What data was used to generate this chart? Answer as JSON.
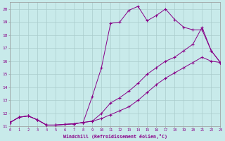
{
  "xlabel": "Windchill (Refroidissement éolien,°C)",
  "bg_color": "#c8eaea",
  "line_color": "#880088",
  "grid_color": "#aacccc",
  "xlim": [
    0,
    23
  ],
  "ylim": [
    11,
    20.5
  ],
  "xticks": [
    0,
    1,
    2,
    3,
    4,
    5,
    6,
    7,
    8,
    9,
    10,
    11,
    12,
    13,
    14,
    15,
    16,
    17,
    18,
    19,
    20,
    21,
    22,
    23
  ],
  "yticks": [
    11,
    12,
    13,
    14,
    15,
    16,
    17,
    18,
    19,
    20
  ],
  "curve_top_x": [
    0,
    1,
    2,
    3,
    4,
    5,
    6,
    7,
    8,
    9,
    10,
    11,
    12,
    13,
    14,
    15,
    16,
    17,
    18,
    19,
    20,
    21,
    22,
    23
  ],
  "curve_top_y": [
    11.3,
    11.7,
    11.8,
    11.5,
    11.1,
    11.1,
    11.15,
    11.2,
    11.3,
    13.3,
    15.5,
    18.9,
    19.0,
    19.9,
    20.2,
    19.1,
    19.5,
    20.0,
    19.2,
    18.6,
    18.4,
    18.4,
    16.8,
    15.9
  ],
  "curve_mid_x": [
    0,
    1,
    2,
    3,
    4,
    5,
    6,
    7,
    8,
    9,
    10,
    11,
    12,
    13,
    14,
    15,
    16,
    17,
    18,
    19,
    20,
    21,
    22,
    23
  ],
  "curve_mid_y": [
    11.3,
    11.7,
    11.8,
    11.5,
    11.1,
    11.1,
    11.15,
    11.2,
    11.3,
    11.4,
    12.0,
    12.8,
    13.2,
    13.7,
    14.3,
    15.0,
    15.5,
    16.0,
    16.3,
    16.8,
    17.3,
    18.6,
    16.8,
    15.9
  ],
  "curve_bot_x": [
    0,
    1,
    2,
    3,
    4,
    5,
    6,
    7,
    8,
    9,
    10,
    11,
    12,
    13,
    14,
    15,
    16,
    17,
    18,
    19,
    20,
    21,
    22,
    23
  ],
  "curve_bot_y": [
    11.3,
    11.7,
    11.8,
    11.5,
    11.1,
    11.1,
    11.15,
    11.2,
    11.3,
    11.4,
    11.6,
    11.9,
    12.2,
    12.5,
    13.0,
    13.6,
    14.2,
    14.7,
    15.1,
    15.5,
    15.9,
    16.3,
    16.0,
    15.9
  ]
}
